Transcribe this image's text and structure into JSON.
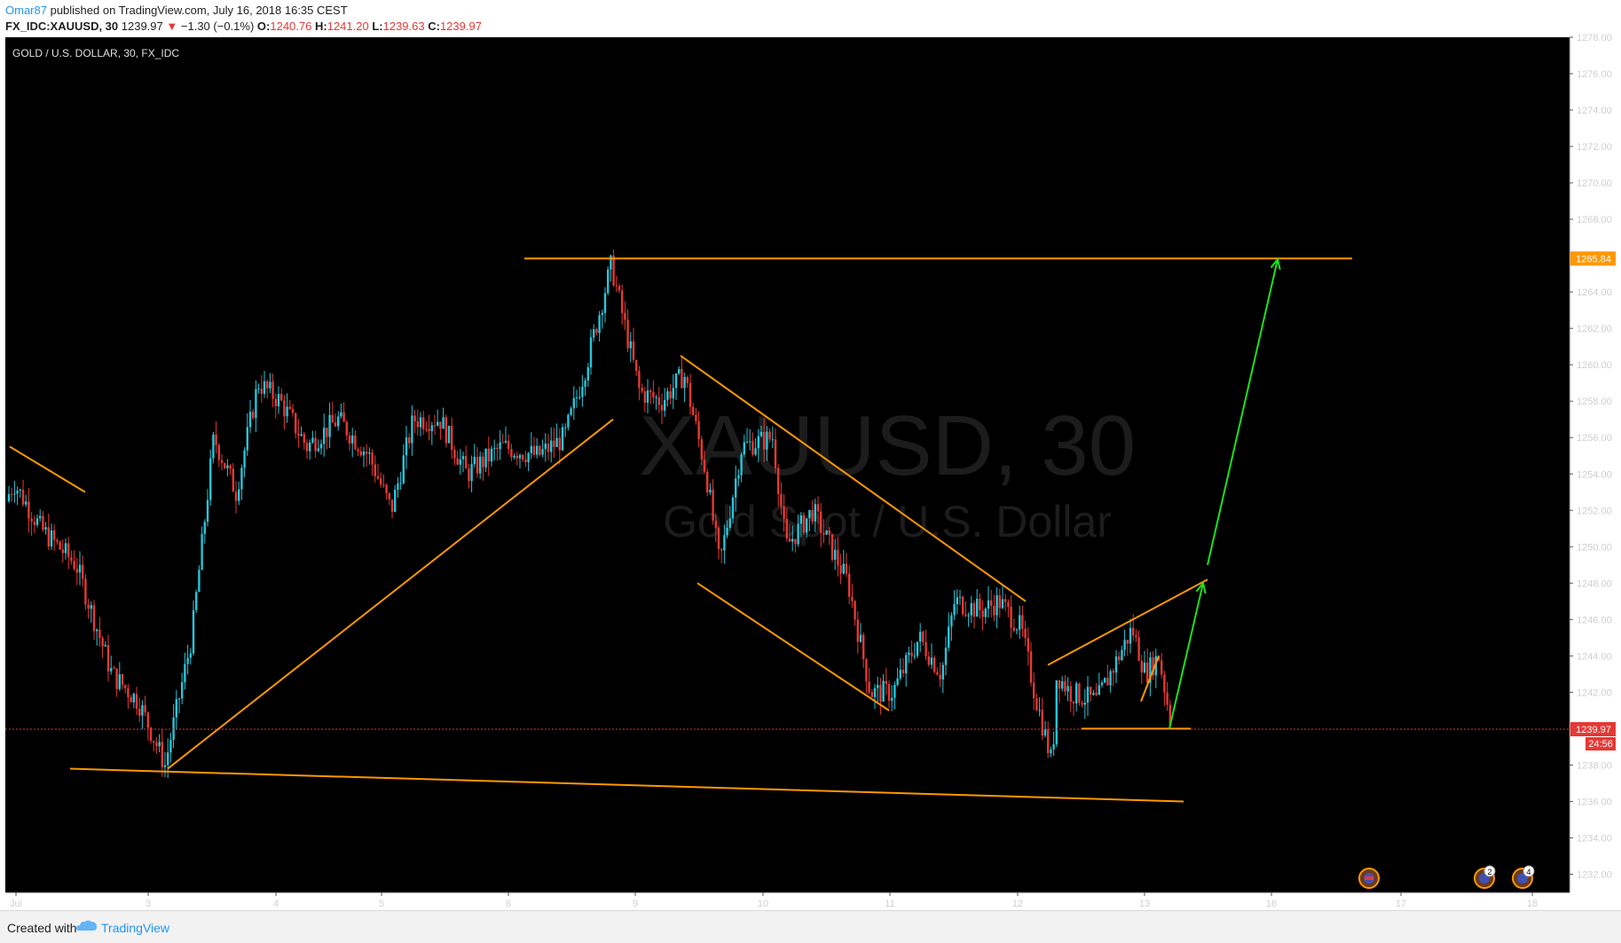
{
  "header": {
    "user": "Omar87",
    "published": "published on TradingView.com, July 16, 2018 16:35 CEST",
    "symbol": "FX_IDC:XAUUSD, 30",
    "price": "1239.97",
    "change_arrow": "▼",
    "change": "−1.30 (−0.1%)",
    "o_label": "O:",
    "o_value": "1240.76",
    "h_label": "H:",
    "h_value": "1241.20",
    "l_label": "L:",
    "l_value": "1239.63",
    "c_label": "C:",
    "c_value": "1239.97"
  },
  "chart_title": "GOLD / U.S. DOLLAR, 30, FX_IDC",
  "watermark": {
    "line1": "XAUUSD, 30",
    "line2": "Gold Spot / U.S. Dollar"
  },
  "footer": {
    "created": "Created with",
    "brand": "TradingView"
  },
  "colors": {
    "background": "#000000",
    "up": "#26c6da",
    "down": "#e53935",
    "trendline": "#ff9800",
    "arrow": "#1ce21c",
    "price_line": "#e53935"
  },
  "chart_data": {
    "type": "candlestick",
    "title": "GOLD / U.S. DOLLAR, 30, FX_IDC",
    "ylim": [
      1231,
      1278
    ],
    "y_ticks": [
      "1278.00",
      "1276.00",
      "1274.00",
      "1272.00",
      "1270.00",
      "1268.00",
      "1265.84",
      "1264.00",
      "1262.00",
      "1260.00",
      "1258.00",
      "1256.00",
      "1254.00",
      "1252.00",
      "1250.00",
      "1248.00",
      "1246.00",
      "1244.00",
      "1242.00",
      "1239.97",
      "1238.00",
      "1236.00",
      "1234.00",
      "1232.00"
    ],
    "x_ticks": [
      "Jul",
      "3",
      "4",
      "5",
      "6",
      "9",
      "10",
      "11",
      "12",
      "13",
      "16",
      "17",
      "18"
    ],
    "last_price": "1239.97",
    "countdown": "24:56",
    "resistance_label": "1265.84",
    "path": [
      [
        0,
        1252.5
      ],
      [
        10,
        1253.5
      ],
      [
        40,
        1251
      ],
      [
        80,
        1249
      ],
      [
        120,
        1243
      ],
      [
        150,
        1241.5
      ],
      [
        180,
        1238
      ],
      [
        210,
        1245
      ],
      [
        235,
        1256
      ],
      [
        260,
        1253
      ],
      [
        285,
        1259
      ],
      [
        310,
        1258
      ],
      [
        340,
        1255.5
      ],
      [
        375,
        1257
      ],
      [
        410,
        1255
      ],
      [
        435,
        1252
      ],
      [
        460,
        1257
      ],
      [
        490,
        1257
      ],
      [
        520,
        1254
      ],
      [
        560,
        1255.5
      ],
      [
        600,
        1255
      ],
      [
        630,
        1256
      ],
      [
        655,
        1260
      ],
      [
        683,
        1265.5
      ],
      [
        715,
        1258.5
      ],
      [
        740,
        1258
      ],
      [
        765,
        1259.5
      ],
      [
        790,
        1254
      ],
      [
        805,
        1249
      ],
      [
        830,
        1255.5
      ],
      [
        865,
        1256
      ],
      [
        880,
        1250
      ],
      [
        910,
        1252
      ],
      [
        930,
        1250
      ],
      [
        950,
        1248
      ],
      [
        975,
        1242
      ],
      [
        1000,
        1242
      ],
      [
        1030,
        1245
      ],
      [
        1055,
        1243
      ],
      [
        1070,
        1247
      ],
      [
        1100,
        1246.5
      ],
      [
        1120,
        1247
      ],
      [
        1145,
        1245.5
      ],
      [
        1160,
        1242
      ],
      [
        1180,
        1238
      ],
      [
        1185,
        1243
      ],
      [
        1200,
        1242
      ],
      [
        1230,
        1241.5
      ],
      [
        1250,
        1243.5
      ],
      [
        1270,
        1245.5
      ],
      [
        1285,
        1243
      ],
      [
        1300,
        1244
      ],
      [
        1315,
        1239.97
      ]
    ],
    "trendlines": [
      {
        "from": [
          5,
          1255.5
        ],
        "to": [
          90,
          1253
        ]
      },
      {
        "from": [
          183,
          1237.8
        ],
        "to": [
          685,
          1257
        ]
      },
      {
        "from": [
          73,
          1237.8
        ],
        "to": [
          1328,
          1236
        ]
      },
      {
        "from": [
          585,
          1265.84
        ],
        "to": [
          1518,
          1265.84
        ]
      },
      {
        "from": [
          761,
          1260.5
        ],
        "to": [
          1150,
          1247
        ]
      },
      {
        "from": [
          780,
          1248
        ],
        "to": [
          996,
          1241
        ]
      },
      {
        "from": [
          1175,
          1243.5
        ],
        "to": [
          1355,
          1248.2
        ]
      },
      {
        "from": [
          1213,
          1240
        ],
        "to": [
          1336,
          1240
        ]
      },
      {
        "from": [
          1280,
          1241.5
        ],
        "to": [
          1300,
          1244
        ]
      }
    ],
    "arrows": [
      {
        "from": [
          1312,
          1240
        ],
        "to": [
          1350,
          1248
        ]
      },
      {
        "from": [
          1355,
          1249
        ],
        "to": [
          1434,
          1265.8
        ]
      }
    ]
  }
}
